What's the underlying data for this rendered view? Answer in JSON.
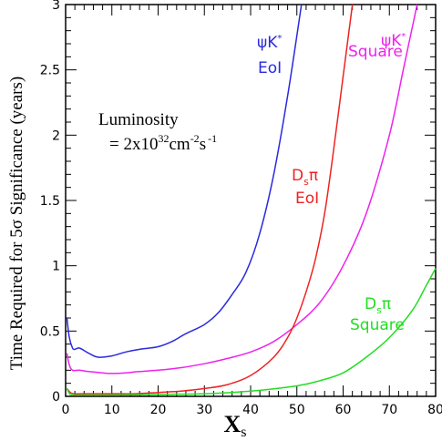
{
  "chart_data": {
    "type": "line",
    "xlabel": "X",
    "xlabel_sub": "s",
    "ylabel": "Time Required for 5σ Significance (years)",
    "xlim": [
      0,
      80
    ],
    "ylim": [
      0,
      3
    ],
    "x_ticks": [
      0,
      10,
      20,
      30,
      40,
      50,
      60,
      70,
      80
    ],
    "y_ticks": [
      0,
      0.5,
      1,
      1.5,
      2,
      2.5,
      3
    ],
    "annotation": {
      "line1": "Luminosity",
      "line2_prefix": "= 2x10",
      "line2_exp1": "32",
      "line2_unit": "cm",
      "line2_exp2": "-2",
      "line2_s": "s",
      "line2_exp3": "-1"
    },
    "series": [
      {
        "key": "psiK_EoI",
        "label_lines": [
          "ψK*",
          "EoI"
        ],
        "color": "#2a2ae0",
        "x": [
          0.3,
          0.8,
          1.5,
          2,
          3,
          5,
          7,
          10,
          13,
          16,
          20,
          23,
          26,
          30,
          33,
          36,
          39,
          42,
          45,
          48,
          51
        ],
        "y": [
          0.6,
          0.45,
          0.37,
          0.36,
          0.37,
          0.33,
          0.3,
          0.31,
          0.34,
          0.36,
          0.38,
          0.42,
          0.48,
          0.55,
          0.64,
          0.78,
          0.95,
          1.25,
          1.7,
          2.3,
          3.0
        ]
      },
      {
        "key": "psiK_Square",
        "label_lines": [
          "ψK*",
          "Square"
        ],
        "color": "#ee22ee",
        "x": [
          0.3,
          0.8,
          1.5,
          3,
          5,
          8,
          10,
          13,
          16,
          20,
          25,
          30,
          35,
          40,
          45,
          50,
          55,
          60,
          65,
          70,
          73,
          76
        ],
        "y": [
          0.33,
          0.24,
          0.2,
          0.2,
          0.19,
          0.18,
          0.175,
          0.18,
          0.19,
          0.2,
          0.22,
          0.25,
          0.29,
          0.34,
          0.42,
          0.55,
          0.72,
          1.0,
          1.4,
          2.0,
          2.5,
          3.0
        ]
      },
      {
        "key": "Dspi_EoI",
        "label_lines": [
          "Dsπ",
          "EoI"
        ],
        "color": "#ee2222",
        "x": [
          0.3,
          1,
          2,
          5,
          10,
          15,
          20,
          25,
          30,
          35,
          40,
          45,
          48,
          50,
          52,
          54,
          56,
          58,
          60,
          62
        ],
        "y": [
          0.06,
          0.03,
          0.02,
          0.02,
          0.02,
          0.02,
          0.03,
          0.04,
          0.06,
          0.09,
          0.16,
          0.3,
          0.45,
          0.6,
          0.8,
          1.05,
          1.4,
          1.9,
          2.45,
          3.0
        ]
      },
      {
        "key": "Dspi_Square",
        "label_lines": [
          "Dsπ",
          "Square"
        ],
        "color": "#22dd22",
        "x": [
          0.3,
          1,
          2,
          5,
          10,
          20,
          30,
          40,
          50,
          55,
          60,
          65,
          70,
          75,
          78,
          80
        ],
        "y": [
          0.06,
          0.015,
          0.01,
          0.01,
          0.01,
          0.015,
          0.02,
          0.04,
          0.08,
          0.12,
          0.18,
          0.3,
          0.45,
          0.66,
          0.85,
          0.98
        ]
      }
    ]
  }
}
